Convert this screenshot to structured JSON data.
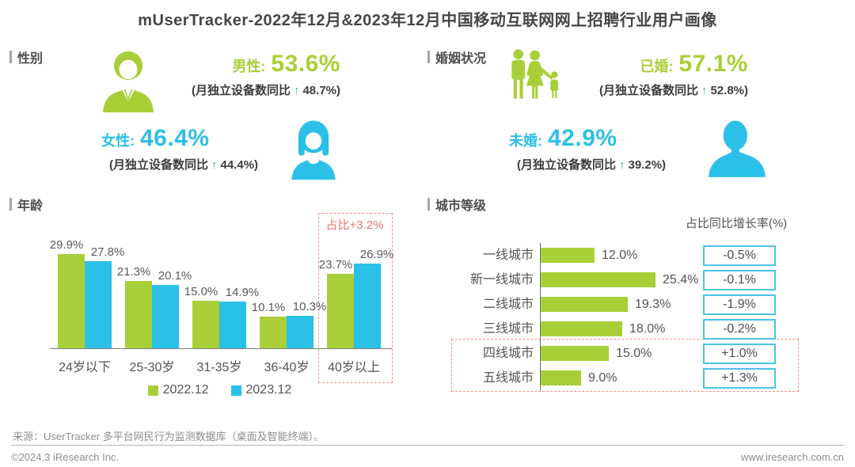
{
  "title": "mUserTracker-2022年12月&2023年12月中国移动互联网网上招聘行业用户画像",
  "colors": {
    "green": "#a8cf38",
    "blue": "#2bc0e8",
    "dark_text": "#555353",
    "note_text": "#3e3c3b",
    "arrow_green": "#3cb878",
    "highlight_red": "#e8756d",
    "growth_box_border": "#4cc4e4"
  },
  "icons": {
    "gender_male": "male-avatar-icon",
    "gender_female": "female-avatar-icon",
    "marital_married": "family-icon",
    "marital_unmarried": "person-silhouette-icon"
  },
  "sections": {
    "gender": {
      "label": "性别"
    },
    "marital": {
      "label": "婚姻状况"
    },
    "age": {
      "label": "年龄"
    },
    "city": {
      "label": "城市等级"
    }
  },
  "gender": {
    "male": {
      "label": "男性:",
      "value": "53.6%",
      "note_prefix": "(月独立设备数同比",
      "arrow": "↑",
      "note_suffix": "48.7%)"
    },
    "female": {
      "label": "女性:",
      "value": "46.4%",
      "note_prefix": "(月独立设备数同比",
      "arrow": "↑",
      "note_suffix": "44.4%)"
    }
  },
  "marital": {
    "married": {
      "label": "已婚:",
      "value": "57.1%",
      "note_prefix": "(月独立设备数同比",
      "arrow": "↑",
      "note_suffix": "52.8%)"
    },
    "unmarried": {
      "label": "未婚:",
      "value": "42.9%",
      "note_prefix": "(月独立设备数同比",
      "arrow": "↑",
      "note_suffix": "39.2%)"
    }
  },
  "chart_data": [
    {
      "id": "age",
      "type": "bar",
      "title": "年龄",
      "categories": [
        "24岁以下",
        "25-30岁",
        "31-35岁",
        "36-40岁",
        "40岁以上"
      ],
      "series": [
        {
          "name": "2022.12",
          "color": "#a8cf38",
          "values": [
            29.9,
            21.3,
            15.0,
            10.1,
            23.7
          ]
        },
        {
          "name": "2023.12",
          "color": "#2bc0e8",
          "values": [
            27.8,
            20.1,
            14.9,
            10.3,
            26.9
          ]
        }
      ],
      "value_suffix": "%",
      "ylim": [
        0,
        32
      ],
      "grid": false,
      "legend_position": "bottom",
      "highlight": {
        "category": "40岁以上",
        "annotation": "占比+3.2%"
      }
    },
    {
      "id": "city",
      "type": "bar",
      "orientation": "horizontal",
      "title": "城市等级",
      "column_header": "占比同比增长率(%)",
      "categories": [
        "一线城市",
        "新一线城市",
        "二线城市",
        "三线城市",
        "四线城市",
        "五线城市"
      ],
      "values": [
        12.0,
        25.4,
        19.3,
        18.0,
        15.0,
        9.0
      ],
      "value_labels": [
        "12.0%",
        "25.4%",
        "19.3%",
        "18.0%",
        "15.0%",
        "9.0%"
      ],
      "growth_labels": [
        "-0.5%",
        "-0.1%",
        "-1.9%",
        "-0.2%",
        "+1.0%",
        "+1.3%"
      ],
      "xlim": [
        0,
        30
      ],
      "grid": false,
      "highlight": {
        "categories": [
          "四线城市",
          "五线城市"
        ]
      }
    }
  ],
  "footer": {
    "source": "来源：UserTracker 多平台网民行为监测数据库（桌面及智能终端）。",
    "copyright": "©2024.3 iResearch Inc.",
    "website": "www.iresearch.com.cn"
  }
}
